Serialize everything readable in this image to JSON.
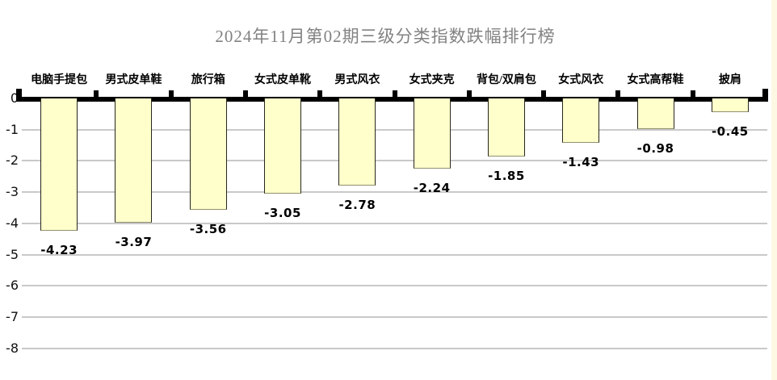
{
  "title": "2024年11月第02期三级分类指数跌幅排行榜",
  "colors": {
    "bar_fill": "#ffffcc",
    "bar_side_border": "#26261c",
    "bar_bottom_border": "#90906e",
    "gridline": "#c9c9c9",
    "axis": "#000000",
    "title_text": "#828282",
    "right_edge_strip": "#fdf8e4",
    "background": "#ffffff"
  },
  "chart_data": {
    "type": "bar",
    "title": "2024年11月第02期三级分类指数跌幅排行榜",
    "categories": [
      "电脑手提包",
      "男式皮单鞋",
      "旅行箱",
      "女式皮单靴",
      "男式风衣",
      "女式夹克",
      "背包/双肩包",
      "女式风衣",
      "女式高帮鞋",
      "披肩"
    ],
    "values": [
      -4.23,
      -3.97,
      -3.56,
      -3.05,
      -2.78,
      -2.24,
      -1.85,
      -1.43,
      -0.98,
      -0.45
    ],
    "value_labels": [
      "-4.23",
      "-3.97",
      "-3.56",
      "-3.05",
      "-2.78",
      "-2.24",
      "-1.85",
      "-1.43",
      "-0.98",
      "-0.45"
    ],
    "xlabel": "",
    "ylabel": "",
    "ylim": [
      -8,
      0
    ],
    "yticks": [
      "0",
      "-1",
      "-2",
      "-3",
      "-4",
      "-5",
      "-6",
      "-7",
      "-8"
    ],
    "grid": "horizontal",
    "legend": "none",
    "bar_labels_position": "below-bar",
    "category_labels_position": "above-axis"
  }
}
